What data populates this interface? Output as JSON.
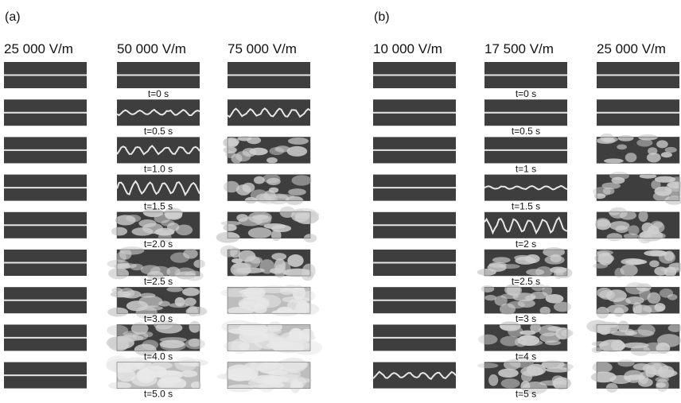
{
  "panels": [
    {
      "label": "(a)",
      "columns": [
        "25 000 V/m",
        "50 000 V/m",
        "75 000 V/m"
      ],
      "times": [
        "t=0 s",
        "t=0.5 s",
        "t=1.0 s",
        "t=1.5 s",
        "t=2.0 s",
        "t=2.5 s",
        "t=3.0 s",
        "t=4.0 s",
        "t=5.0 s"
      ]
    },
    {
      "label": "(b)",
      "columns": [
        "10 000 V/m",
        "17 500 V/m",
        "25 000 V/m"
      ],
      "times": [
        "t=0 s",
        "t=0.5 s",
        "t=1 s",
        "t=1.5 s",
        "t=2 s",
        "t=2.5 s",
        "t=3 s",
        "t=4 s",
        "t=5 s"
      ]
    }
  ]
}
